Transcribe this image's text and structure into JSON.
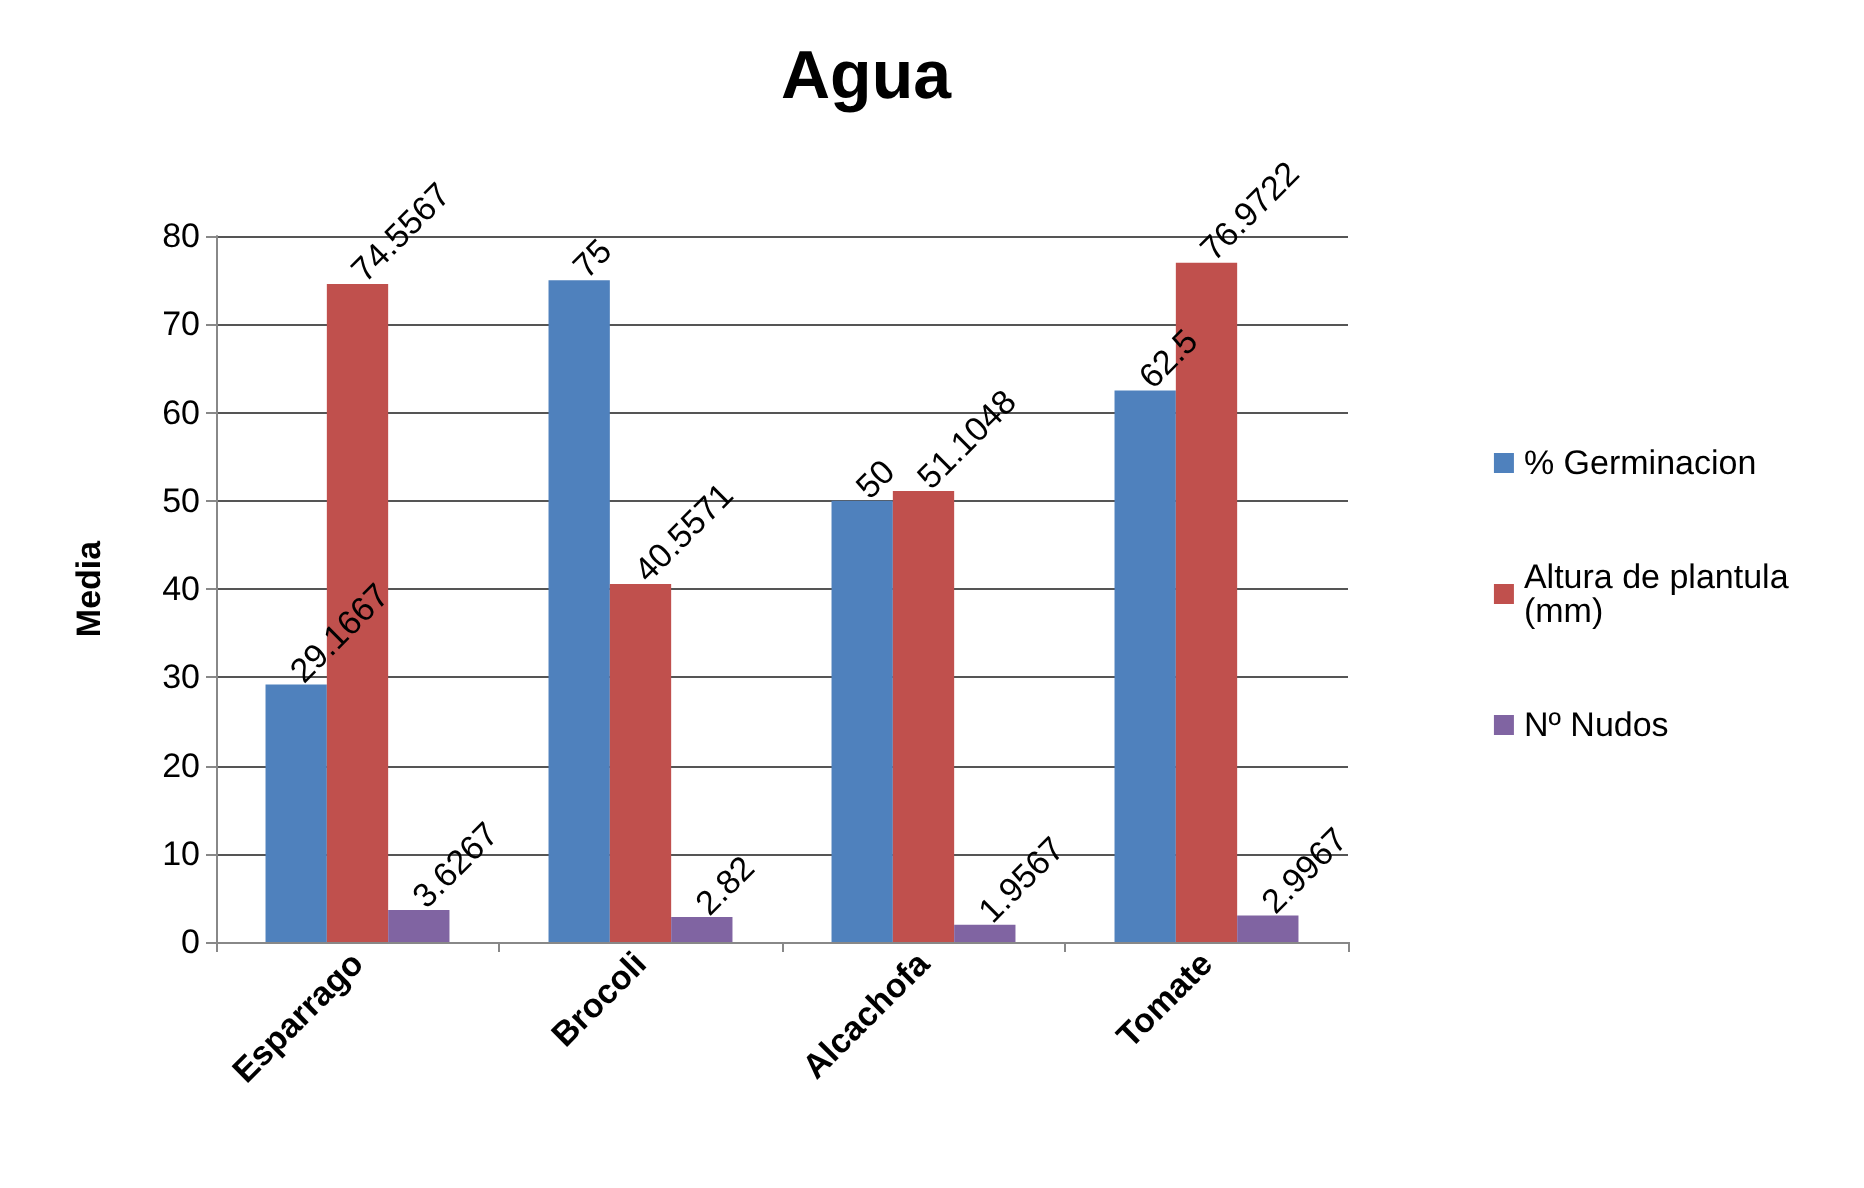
{
  "chart_data": {
    "type": "bar",
    "title": "Agua",
    "ylabel": "Media",
    "categories": [
      "Esparrago",
      "Brocoli",
      "Alcachofa",
      "Tomate"
    ],
    "series": [
      {
        "name": "% Germinacion",
        "color": "#4f81bd",
        "values": [
          29.1667,
          75,
          50,
          62.5
        ]
      },
      {
        "name": "Altura de plantula (mm)",
        "color": "#c0504d",
        "values": [
          74.5567,
          40.5571,
          51.1048,
          76.9722
        ]
      },
      {
        "name": "Nº Nudos",
        "color": "#8064a2",
        "values": [
          3.6267,
          2.82,
          1.9567,
          2.9967
        ]
      }
    ],
    "ylim": [
      0,
      80
    ],
    "yticks": [
      0,
      10,
      20,
      30,
      40,
      50,
      60,
      70,
      80
    ],
    "grid": "y",
    "legend": "right",
    "data_labels": true
  }
}
